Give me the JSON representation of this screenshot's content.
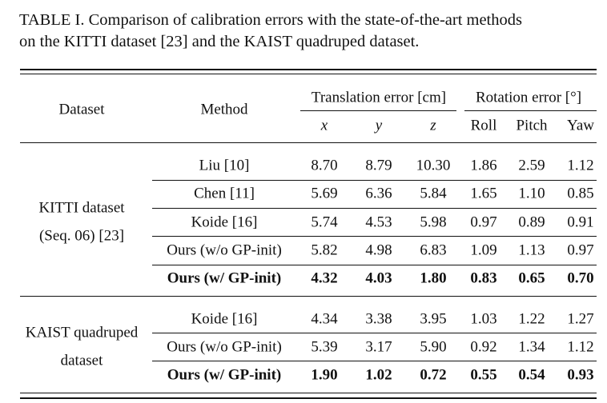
{
  "caption": [
    "TABLE I. Comparison of calibration errors with the state-of-the-art methods",
    "on the KITTI dataset [23] and the KAIST quadruped dataset."
  ],
  "table": {
    "header": {
      "dataset": "Dataset",
      "method": "Method",
      "translation": "Translation error [cm]",
      "rotation": "Rotation error [°]",
      "columns": [
        "x",
        "y",
        "z",
        "Roll",
        "Pitch",
        "Yaw"
      ]
    },
    "groups": [
      {
        "dataset": [
          "KITTI dataset",
          "(Seq. 06) [23]"
        ],
        "rows": [
          {
            "method": "Liu [10]",
            "values": [
              "8.70",
              "8.79",
              "10.30",
              "1.86",
              "2.59",
              "1.12"
            ],
            "bold": false
          },
          {
            "method": "Chen [11]",
            "values": [
              "5.69",
              "6.36",
              "5.84",
              "1.65",
              "1.10",
              "0.85"
            ],
            "bold": false
          },
          {
            "method": "Koide [16]",
            "values": [
              "5.74",
              "4.53",
              "5.98",
              "0.97",
              "0.89",
              "0.91"
            ],
            "bold": false
          },
          {
            "method": "Ours (w/o GP-init)",
            "values": [
              "5.82",
              "4.98",
              "6.83",
              "1.09",
              "1.13",
              "0.97"
            ],
            "bold": false
          },
          {
            "method": "Ours (w/ GP-init)",
            "values": [
              "4.32",
              "4.03",
              "1.80",
              "0.83",
              "0.65",
              "0.70"
            ],
            "bold": true
          }
        ]
      },
      {
        "dataset": [
          "KAIST quadruped",
          "dataset"
        ],
        "rows": [
          {
            "method": "Koide [16]",
            "values": [
              "4.34",
              "3.38",
              "3.95",
              "1.03",
              "1.22",
              "1.27"
            ],
            "bold": false
          },
          {
            "method": "Ours (w/o GP-init)",
            "values": [
              "5.39",
              "3.17",
              "5.90",
              "0.92",
              "1.34",
              "1.12"
            ],
            "bold": false
          },
          {
            "method": "Ours (w/ GP-init)",
            "values": [
              "1.90",
              "1.02",
              "0.72",
              "0.55",
              "0.54",
              "0.93"
            ],
            "bold": true
          }
        ]
      }
    ]
  }
}
